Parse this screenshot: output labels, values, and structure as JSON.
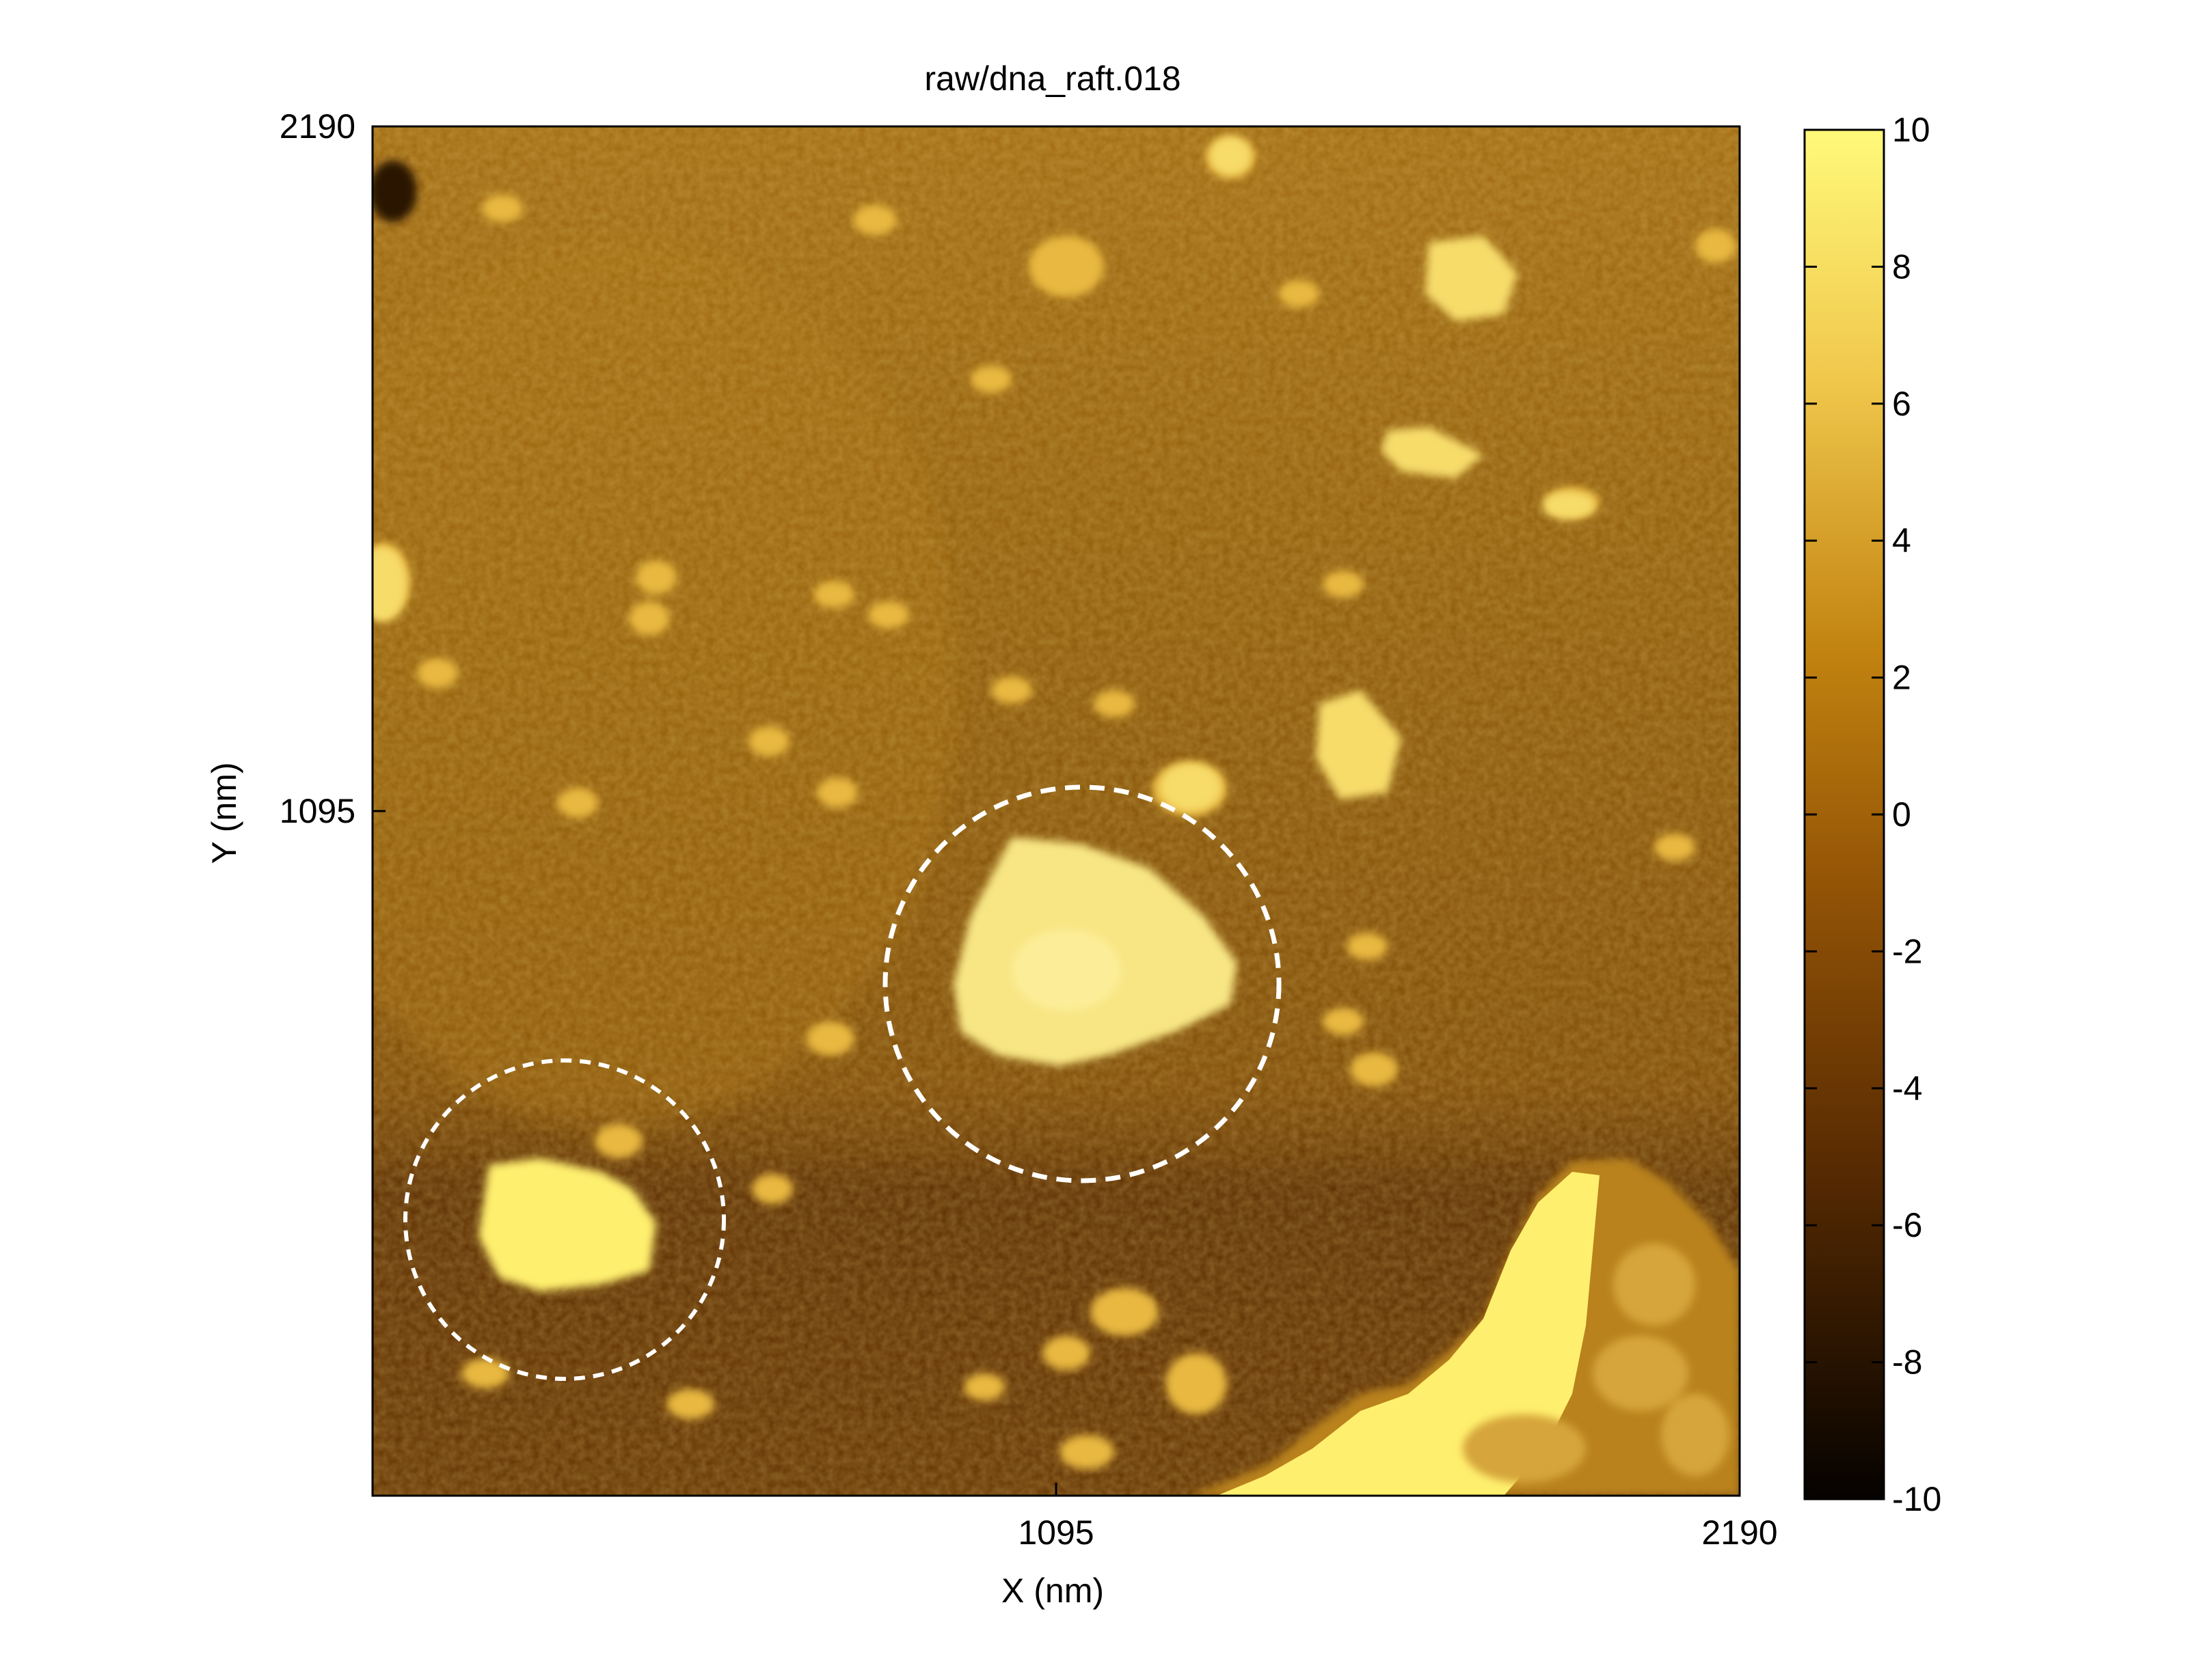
{
  "figure": {
    "title": "raw/dna_raft.018",
    "xlabel": "X (nm)",
    "ylabel": "Y (nm)",
    "x_ticks": [
      "1095",
      "2190"
    ],
    "y_ticks": [
      "2190",
      "1095"
    ],
    "colorbar_ticks": [
      "10",
      "8",
      "6",
      "4",
      "2",
      "0",
      "-2",
      "-4",
      "-6",
      "-8",
      "-10"
    ],
    "colorbar_range": [
      -10,
      10
    ]
  },
  "colors": {
    "background_mid": "#8a5408",
    "background_dark": "#5a2e02",
    "feature_bright": "#ffef72",
    "annotation_circle": "#ffffff"
  }
}
